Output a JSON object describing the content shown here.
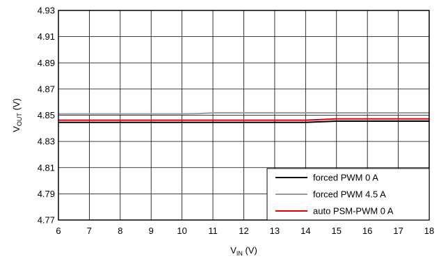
{
  "chart_data": {
    "type": "line",
    "title": "",
    "xlabel": {
      "main": "V",
      "sub": "IN",
      "unit": " (V)"
    },
    "ylabel": {
      "main": "V",
      "sub": "OUT",
      "unit": " (V)"
    },
    "xlim": [
      6,
      18
    ],
    "ylim": [
      4.77,
      4.93
    ],
    "xticks": [
      6,
      7,
      8,
      9,
      10,
      11,
      12,
      13,
      14,
      15,
      16,
      17,
      18
    ],
    "yticks": [
      4.77,
      4.79,
      4.81,
      4.83,
      4.85,
      4.87,
      4.89,
      4.91,
      4.93
    ],
    "ytick_labels": [
      "4.77",
      "4.79",
      "4.81",
      "4.83",
      "4.85",
      "4.87",
      "4.89",
      "4.91",
      "4.93"
    ],
    "grid": true,
    "legend_position": "bottom-right",
    "series": [
      {
        "name": "forced PWM 0 A",
        "color": "#000000",
        "x": [
          6,
          8,
          10,
          12,
          13,
          14,
          14.5,
          15,
          16,
          17,
          18
        ],
        "y": [
          4.8445,
          4.8445,
          4.8445,
          4.8445,
          4.8445,
          4.8445,
          4.845,
          4.8455,
          4.8455,
          4.8455,
          4.8455
        ]
      },
      {
        "name": "forced PWM 4.5 A",
        "color": "#999999",
        "x": [
          6,
          8,
          10,
          10.5,
          11,
          12,
          14,
          16,
          18
        ],
        "y": [
          4.851,
          4.851,
          4.851,
          4.8512,
          4.8518,
          4.8518,
          4.8518,
          4.8518,
          4.8518
        ]
      },
      {
        "name": "auto PSM-PWM 0 A",
        "color": "#e00000",
        "x": [
          6,
          8,
          10,
          12,
          13,
          14,
          15,
          16,
          17,
          18
        ],
        "y": [
          4.8462,
          4.8462,
          4.8462,
          4.8462,
          4.8462,
          4.8462,
          4.8472,
          4.8472,
          4.8472,
          4.8472
        ]
      }
    ]
  }
}
